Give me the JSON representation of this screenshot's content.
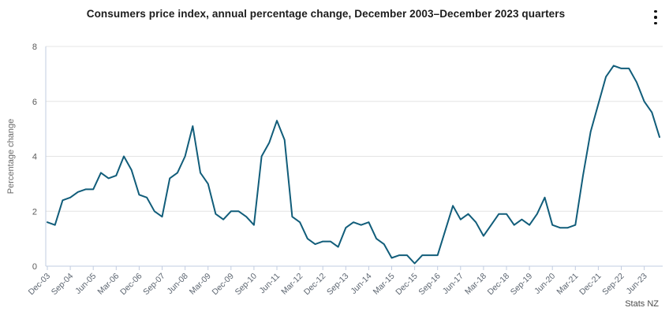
{
  "header": {
    "title": "Consumers price index, annual percentage change, December 2003–December 2023 quarters",
    "menu_icon": "kebab-menu-icon"
  },
  "footer": {
    "attribution": "Stats NZ"
  },
  "chart_data": {
    "type": "line",
    "title": "Consumers price index, annual percentage change, December 2003–December 2023 quarters",
    "xlabel": "",
    "ylabel": "Percentage change",
    "ylim": [
      0,
      8
    ],
    "yticks": [
      0,
      2,
      4,
      6,
      8
    ],
    "grid": "horizontal-only",
    "legend": "none",
    "x_tick_every": 3,
    "x": [
      "Dec-03",
      "Mar-04",
      "Jun-04",
      "Sep-04",
      "Dec-04",
      "Mar-05",
      "Jun-05",
      "Sep-05",
      "Dec-05",
      "Mar-06",
      "Jun-06",
      "Sep-06",
      "Dec-06",
      "Mar-07",
      "Jun-07",
      "Sep-07",
      "Dec-07",
      "Mar-08",
      "Jun-08",
      "Sep-08",
      "Dec-08",
      "Mar-09",
      "Jun-09",
      "Sep-09",
      "Dec-09",
      "Mar-10",
      "Jun-10",
      "Sep-10",
      "Dec-10",
      "Mar-11",
      "Jun-11",
      "Sep-11",
      "Dec-11",
      "Mar-12",
      "Jun-12",
      "Sep-12",
      "Dec-12",
      "Mar-13",
      "Jun-13",
      "Sep-13",
      "Dec-13",
      "Mar-14",
      "Jun-14",
      "Sep-14",
      "Dec-14",
      "Mar-15",
      "Jun-15",
      "Sep-15",
      "Dec-15",
      "Mar-16",
      "Jun-16",
      "Sep-16",
      "Dec-16",
      "Mar-17",
      "Jun-17",
      "Sep-17",
      "Dec-17",
      "Mar-18",
      "Jun-18",
      "Sep-18",
      "Dec-18",
      "Mar-19",
      "Jun-19",
      "Sep-19",
      "Dec-19",
      "Mar-20",
      "Jun-20",
      "Sep-20",
      "Dec-20",
      "Mar-21",
      "Jun-21",
      "Sep-21",
      "Dec-21",
      "Mar-22",
      "Jun-22",
      "Sep-22",
      "Dec-22",
      "Mar-23",
      "Jun-23",
      "Sep-23",
      "Dec-23"
    ],
    "visible_x_tick_labels": [
      "Dec-03",
      "Sep-04",
      "Jun-05",
      "Mar-06",
      "Dec-06",
      "Sep-07",
      "Jun-08",
      "Mar-09",
      "Dec-09",
      "Sep-10",
      "Jun-11",
      "Mar-12",
      "Dec-12",
      "Sep-13",
      "Jun-14",
      "Mar-15",
      "Dec-15",
      "Sep-16",
      "Jun-17",
      "Mar-18",
      "Dec-18",
      "Sep-19",
      "Jun-20",
      "Mar-21",
      "Dec-21",
      "Sep-22",
      "Jun-23"
    ],
    "series": [
      {
        "name": "Consumers price index, annual percentage change",
        "values": [
          1.6,
          1.5,
          2.4,
          2.5,
          2.7,
          2.8,
          2.8,
          3.4,
          3.2,
          3.3,
          4.0,
          3.5,
          2.6,
          2.5,
          2.0,
          1.8,
          3.2,
          3.4,
          4.0,
          5.1,
          3.4,
          3.0,
          1.9,
          1.7,
          2.0,
          2.0,
          1.8,
          1.5,
          4.0,
          4.5,
          5.3,
          4.6,
          1.8,
          1.6,
          1.0,
          0.8,
          0.9,
          0.9,
          0.7,
          1.4,
          1.6,
          1.5,
          1.6,
          1.0,
          0.8,
          0.3,
          0.4,
          0.4,
          0.1,
          0.4,
          0.4,
          0.4,
          1.3,
          2.2,
          1.7,
          1.9,
          1.6,
          1.1,
          1.5,
          1.9,
          1.9,
          1.5,
          1.7,
          1.5,
          1.9,
          2.5,
          1.5,
          1.4,
          1.4,
          1.5,
          3.3,
          4.9,
          5.9,
          6.9,
          7.3,
          7.2,
          7.2,
          6.7,
          6.0,
          5.6,
          4.7
        ]
      }
    ],
    "colors": {
      "line": "#115d7a",
      "gridline": "#e4e4e4",
      "axis": "#c2cce0",
      "y_tick_label": "#5a5a5a",
      "x_tick_label": "#5c6570",
      "axis_title": "#6a6a6a"
    }
  }
}
